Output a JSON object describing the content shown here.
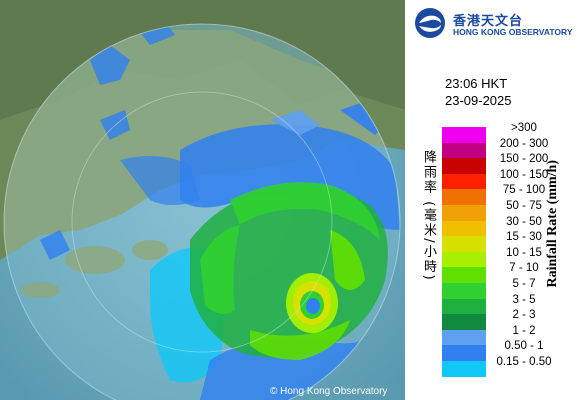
{
  "header": {
    "org_name_cn": "香港天文台",
    "org_name_en": "HONG KONG OBSERVATORY"
  },
  "timestamp": {
    "time": "23:06 HKT",
    "date": "23-09-2025"
  },
  "legend": {
    "label_cn": "降雨率 (毫米/小時)",
    "label_en": "Rainfall Rate (mm/h)",
    "items": [
      {
        "label": ">300",
        "color": "#f000f0"
      },
      {
        "label": "200 - 300",
        "color": "#c00080"
      },
      {
        "label": "150 - 200",
        "color": "#c80000"
      },
      {
        "label": "100 - 150",
        "color": "#ff2000"
      },
      {
        "label": "75 - 100",
        "color": "#f07000"
      },
      {
        "label": "50 - 75",
        "color": "#f0a000"
      },
      {
        "label": "30 - 50",
        "color": "#f0c000"
      },
      {
        "label": "15 - 30",
        "color": "#d8e000"
      },
      {
        "label": "10 - 15",
        "color": "#a8f000"
      },
      {
        "label": "7 - 10",
        "color": "#60e000"
      },
      {
        "label": "5 - 7",
        "color": "#30d030"
      },
      {
        "label": "3 - 5",
        "color": "#20b040"
      },
      {
        "label": "2 - 3",
        "color": "#108a40"
      },
      {
        "label": "1 - 2",
        "color": "#60a0f0"
      },
      {
        "label": "0.50 - 1",
        "color": "#3080f0"
      },
      {
        "label": "0.15 - 0.50",
        "color": "#10c8f8"
      }
    ]
  },
  "map": {
    "copyright": "© Hong Kong Observatory"
  }
}
